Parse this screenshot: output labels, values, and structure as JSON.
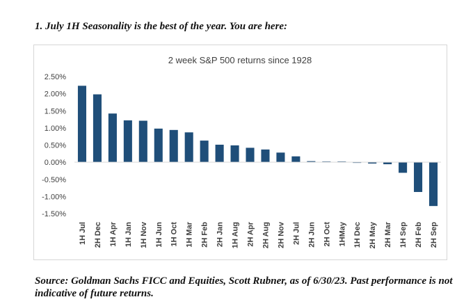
{
  "heading": "1. July 1H Seasonality is the best of the year. You are here:",
  "footnote": "Source: Goldman Sachs FICC and Equities, Scott Rubner, as of 6/30/23. Past performance is not indicative of future returns.",
  "colors": {
    "bar": "#1f4e79",
    "axis": "#d9d9d9",
    "text": "#404040"
  },
  "chart_data": {
    "type": "bar",
    "title": "2 week S&P 500 returns since 1928",
    "xlabel": "",
    "ylabel": "",
    "ylim": [
      -1.5,
      2.5
    ],
    "yticks": [
      2.5,
      2.0,
      1.5,
      1.0,
      0.5,
      0.0,
      -0.5,
      -1.0,
      -1.5
    ],
    "ytick_labels": [
      "2.50%",
      "2.00%",
      "1.50%",
      "1.00%",
      "0.50%",
      "0.00%",
      "-0.50%",
      "-1.00%",
      "-1.50%"
    ],
    "grid": false,
    "categories": [
      "1H Jul",
      "2H Dec",
      "1H Apr",
      "1H Jan",
      "1H Nov",
      "1H Jun",
      "1H Oct",
      "1H Mar",
      "2H Feb",
      "2H Jan",
      "1H Aug",
      "2H Apr",
      "2H Aug",
      "2H Nov",
      "2H Jul",
      "2H Jun",
      "2H Oct",
      "1HMay",
      "1H Dec",
      "2H May",
      "2H Mar",
      "1H Sep",
      "2H Feb",
      "2H Sep"
    ],
    "values": [
      2.23,
      1.98,
      1.42,
      1.22,
      1.21,
      0.98,
      0.94,
      0.87,
      0.63,
      0.51,
      0.49,
      0.42,
      0.37,
      0.28,
      0.17,
      0.03,
      0.02,
      0.02,
      -0.02,
      -0.04,
      -0.06,
      -0.31,
      -0.87,
      -1.28
    ]
  }
}
